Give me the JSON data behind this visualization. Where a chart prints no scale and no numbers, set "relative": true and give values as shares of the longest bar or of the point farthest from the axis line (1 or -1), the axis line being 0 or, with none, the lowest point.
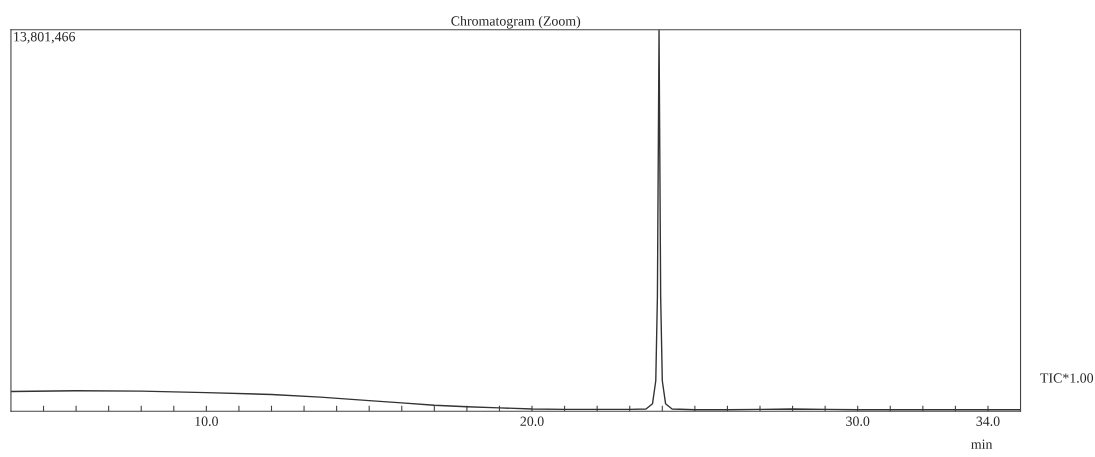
{
  "chart_data": {
    "type": "line",
    "title": "Chromatogram (Zoom)",
    "xlabel": "min",
    "relative": true,
    "annotations": [
      "13,801,466"
    ],
    "xlim": [
      4,
      35
    ],
    "xticks": [
      {
        "value": 5,
        "label": null
      },
      {
        "value": 6,
        "label": null
      },
      {
        "value": 7,
        "label": null
      },
      {
        "value": 8,
        "label": null
      },
      {
        "value": 9,
        "label": null
      },
      {
        "value": 10,
        "label": "10.0"
      },
      {
        "value": 11,
        "label": null
      },
      {
        "value": 12,
        "label": null
      },
      {
        "value": 13,
        "label": null
      },
      {
        "value": 14,
        "label": null
      },
      {
        "value": 15,
        "label": null
      },
      {
        "value": 16,
        "label": null
      },
      {
        "value": 17,
        "label": null
      },
      {
        "value": 18,
        "label": null
      },
      {
        "value": 19,
        "label": null
      },
      {
        "value": 20,
        "label": "20.0"
      },
      {
        "value": 21,
        "label": null
      },
      {
        "value": 22,
        "label": null
      },
      {
        "value": 23,
        "label": null
      },
      {
        "value": 24,
        "label": null
      },
      {
        "value": 25,
        "label": null
      },
      {
        "value": 26,
        "label": null
      },
      {
        "value": 27,
        "label": null
      },
      {
        "value": 28,
        "label": null
      },
      {
        "value": 29,
        "label": null
      },
      {
        "value": 30,
        "label": "30.0"
      },
      {
        "value": 31,
        "label": null
      },
      {
        "value": 32,
        "label": null
      },
      {
        "value": 33,
        "label": null
      },
      {
        "value": 34,
        "label": "34.0"
      }
    ],
    "grid": false,
    "legend": false,
    "marker": "none",
    "line_style": "solid",
    "series": [
      {
        "name": "TIC*1.00",
        "color": "#333333",
        "x": [
          4,
          6,
          8,
          10,
          12,
          13.5,
          15,
          16,
          17,
          18,
          19,
          20,
          21,
          22,
          23,
          23.5,
          23.7,
          23.8,
          23.85,
          23.9,
          23.95,
          24.0,
          24.1,
          24.3,
          25,
          26,
          27,
          28,
          29,
          30,
          32,
          34,
          35
        ],
        "values": [
          0.052,
          0.054,
          0.053,
          0.049,
          0.044,
          0.037,
          0.028,
          0.022,
          0.016,
          0.012,
          0.009,
          0.006,
          0.005,
          0.005,
          0.005,
          0.006,
          0.02,
          0.08,
          0.3,
          1.0,
          0.3,
          0.08,
          0.02,
          0.006,
          0.004,
          0.004,
          0.005,
          0.006,
          0.005,
          0.004,
          0.004,
          0.004,
          0.004
        ]
      }
    ]
  }
}
